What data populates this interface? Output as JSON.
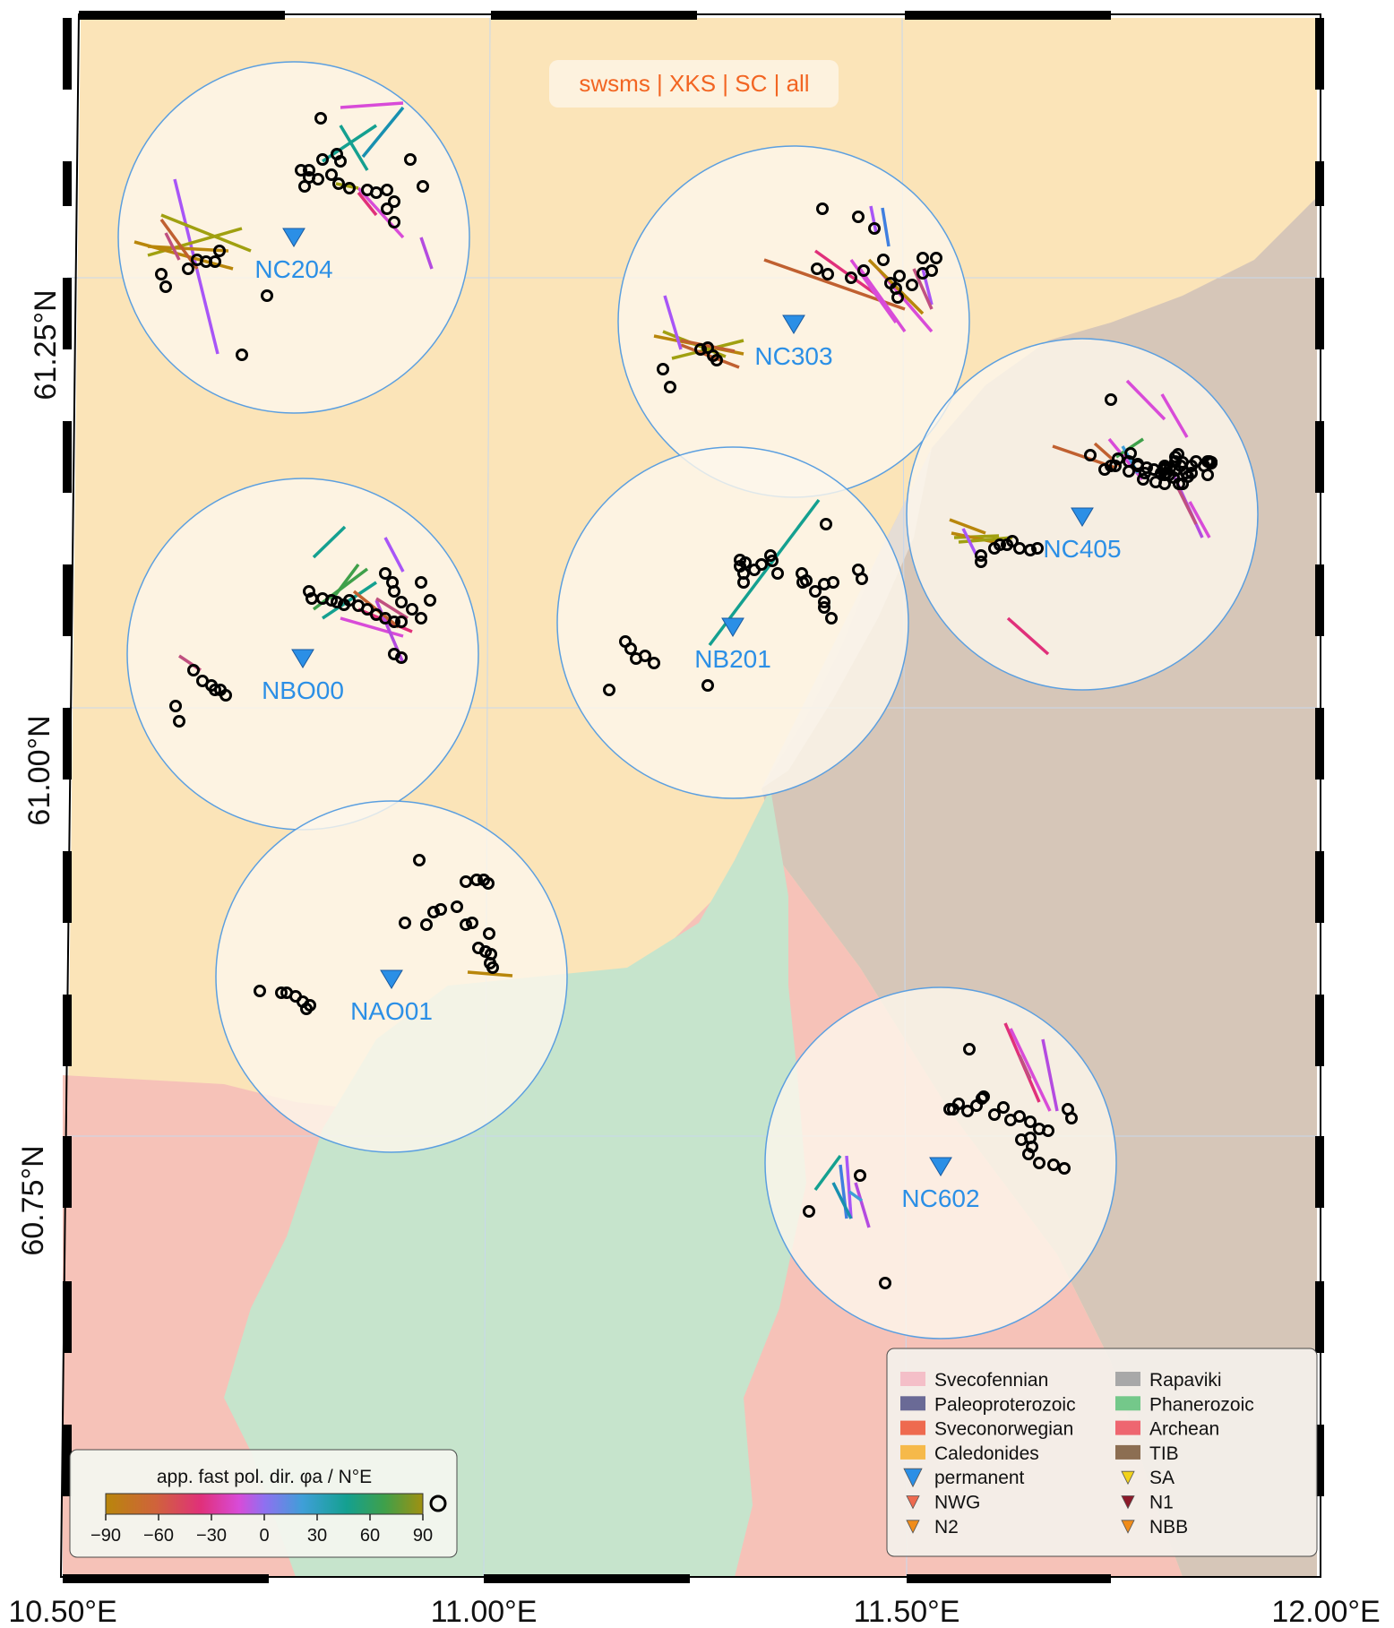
{
  "map": {
    "mode_label": "swsms | XKS | SC | all",
    "lon_ticks": [
      "10.50°E",
      "11.00°E",
      "11.50°E",
      "12.00°E"
    ],
    "lat_ticks": [
      "61.25°N",
      "61.00°N",
      "60.75°N"
    ]
  },
  "colors": {
    "svecofennian_bg": "#fbe4b8",
    "tib_bg": "#d6c6b8",
    "archean_bg": "#f6c2b8",
    "phanerozoic_bg": "#c6e4cc",
    "station": "#2b8fe6",
    "circle_fill": "#fdf7ec",
    "circle_stroke": "#5b9fe0",
    "mode_label": "#f26522"
  },
  "stations": [
    {
      "name": "NC204"
    },
    {
      "name": "NC303"
    },
    {
      "name": "NC405"
    },
    {
      "name": "NBO00"
    },
    {
      "name": "NB201"
    },
    {
      "name": "NAO01"
    },
    {
      "name": "NC602"
    }
  ],
  "colorbar": {
    "title": "app. fast pol. dir. φa / N°E",
    "ticks": [
      "−90",
      "−60",
      "−30",
      "0",
      "30",
      "60",
      "90"
    ]
  },
  "legend": {
    "left": [
      "Svecofennian",
      "Paleoproterozoic",
      "Sveconorwegian",
      "Caledonides",
      "permanent",
      "NWG",
      "N2"
    ],
    "right": [
      "Rapaviki",
      "Phanerozoic",
      "Archean",
      "TIB",
      "SA",
      "N1",
      "NBB"
    ]
  }
}
